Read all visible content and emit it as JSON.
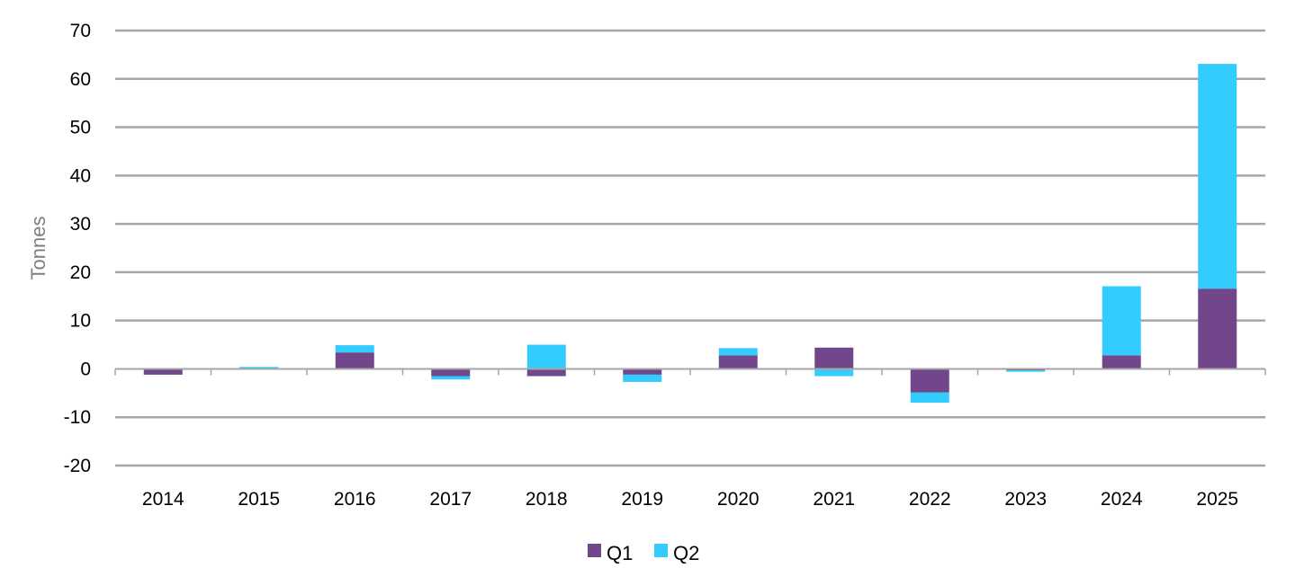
{
  "chart_data": {
    "type": "bar",
    "stacked": true,
    "title": "",
    "xlabel": "",
    "ylabel": "Tonnes",
    "ylim": [
      -20,
      70
    ],
    "yticks": [
      70,
      60,
      50,
      40,
      30,
      20,
      10,
      0,
      -10,
      -20
    ],
    "grid": true,
    "legend_position": "bottom-center",
    "categories": [
      "2014",
      "2015",
      "2016",
      "2017",
      "2018",
      "2019",
      "2020",
      "2021",
      "2022",
      "2023",
      "2024",
      "2025"
    ],
    "series": [
      {
        "name": "Q1",
        "color": "#71468a",
        "values": [
          -1.2,
          0.1,
          3.4,
          -1.5,
          -1.5,
          -1.2,
          2.8,
          4.4,
          -4.9,
          -0.3,
          2.8,
          16.6
        ]
      },
      {
        "name": "Q2",
        "color": "#33ccff",
        "values": [
          0.0,
          0.3,
          1.5,
          -0.7,
          5.0,
          -1.5,
          1.5,
          -1.5,
          -2.1,
          -0.3,
          14.3,
          46.5
        ]
      }
    ]
  }
}
